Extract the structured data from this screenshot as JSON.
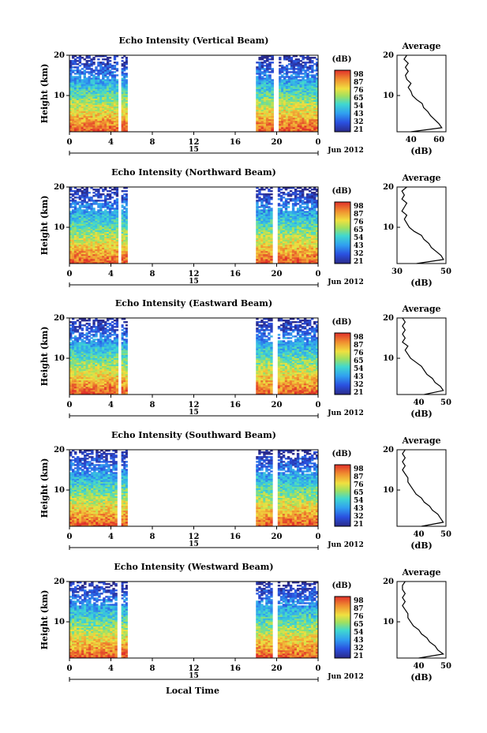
{
  "figure": {
    "xlabel_bottom": "Local Time",
    "date_label": "Jun 2012",
    "ylabel": "Height (km)",
    "colorbar_title": "(dB)",
    "colorbar_ticks": [
      "98",
      "87",
      "76",
      "65",
      "54",
      "43",
      "32",
      "21"
    ],
    "colors": {
      "high": "#e0302a",
      "mid": "#f0e040",
      "low": "#2840d0",
      "frame": "#000000"
    }
  },
  "chart_data": [
    {
      "type": "heatmap",
      "title": "Echo Intensity (Vertical Beam)",
      "ylabel": "Height (km)",
      "x_ticks": [
        "0",
        "4",
        "8",
        "12",
        "16",
        "20",
        "0"
      ],
      "x_day_label": "15",
      "y_ticks": [
        "20",
        "10"
      ],
      "ylim": [
        1,
        20
      ],
      "data_intervals_hours": [
        [
          0,
          4.7
        ],
        [
          5.0,
          5.6
        ],
        [
          18.0,
          19.7
        ],
        [
          20.2,
          24
        ]
      ],
      "profile": {
        "title": "Average",
        "xlabel": "(dB)",
        "x_ticks": [
          "40",
          "60"
        ],
        "xlim": [
          30,
          65
        ],
        "heights_km": [
          1,
          2,
          3,
          4,
          5,
          6,
          7,
          8,
          9,
          10,
          11,
          12,
          13,
          14,
          15,
          16,
          17,
          18,
          19,
          20
        ],
        "values_db": [
          40,
          62,
          60,
          57,
          54,
          52,
          49,
          48,
          44,
          41,
          40,
          38,
          40,
          37,
          36,
          38,
          36,
          38,
          35,
          37
        ]
      }
    },
    {
      "type": "heatmap",
      "title": "Echo Intensity (Northward Beam)",
      "ylabel": "Height (km)",
      "x_ticks": [
        "0",
        "4",
        "8",
        "12",
        "16",
        "20",
        "0"
      ],
      "x_day_label": "15",
      "y_ticks": [
        "20",
        "10"
      ],
      "ylim": [
        1,
        20
      ],
      "data_intervals_hours": [
        [
          0,
          4.7
        ],
        [
          5.0,
          5.6
        ],
        [
          18.0,
          19.6
        ],
        [
          20.1,
          24
        ]
      ],
      "profile": {
        "title": "Average",
        "xlabel": "(dB)",
        "x_ticks": [
          "30",
          "50"
        ],
        "xlim": [
          30,
          50
        ],
        "heights_km": [
          1,
          2,
          3,
          4,
          5,
          6,
          7,
          8,
          9,
          10,
          11,
          12,
          13,
          14,
          15,
          16,
          17,
          18,
          19,
          20
        ],
        "values_db": [
          38,
          49,
          48,
          46,
          44,
          43,
          41,
          40,
          37,
          35,
          34,
          33,
          34,
          32,
          33,
          34,
          32,
          33,
          32,
          34
        ]
      }
    },
    {
      "type": "heatmap",
      "title": "Echo Intensity (Eastward Beam)",
      "ylabel": "Height (km)",
      "x_ticks": [
        "0",
        "4",
        "8",
        "12",
        "16",
        "20",
        "0"
      ],
      "x_day_label": "15",
      "y_ticks": [
        "20",
        "10"
      ],
      "ylim": [
        1,
        20
      ],
      "data_intervals_hours": [
        [
          0,
          4.7
        ],
        [
          5.0,
          5.6
        ],
        [
          18.0,
          19.6
        ],
        [
          20.1,
          24
        ]
      ],
      "profile": {
        "title": "Average",
        "xlabel": "(dB)",
        "x_ticks": [
          "40",
          "50"
        ],
        "xlim": [
          32,
          50
        ],
        "heights_km": [
          1,
          2,
          3,
          4,
          5,
          6,
          7,
          8,
          9,
          10,
          11,
          12,
          13,
          14,
          15,
          16,
          17,
          18,
          19,
          20
        ],
        "values_db": [
          42,
          49,
          48,
          46,
          45,
          43,
          42,
          41,
          39,
          37,
          36,
          35,
          36,
          34,
          35,
          34,
          35,
          34,
          35,
          34
        ]
      }
    },
    {
      "type": "heatmap",
      "title": "Echo Intensity (Southward Beam)",
      "ylabel": "Height (km)",
      "x_ticks": [
        "0",
        "4",
        "8",
        "12",
        "16",
        "20",
        "0"
      ],
      "x_day_label": "15",
      "y_ticks": [
        "20",
        "10"
      ],
      "ylim": [
        1,
        20
      ],
      "data_intervals_hours": [
        [
          0,
          4.6
        ],
        [
          5.0,
          5.6
        ],
        [
          18.0,
          19.6
        ],
        [
          20.1,
          24
        ]
      ],
      "profile": {
        "title": "Average",
        "xlabel": "(dB)",
        "x_ticks": [
          "40",
          "50"
        ],
        "xlim": [
          32,
          50
        ],
        "heights_km": [
          1,
          2,
          3,
          4,
          5,
          6,
          7,
          8,
          9,
          10,
          11,
          12,
          13,
          14,
          15,
          16,
          17,
          18,
          19,
          20
        ],
        "values_db": [
          41,
          49,
          48,
          47,
          45,
          44,
          42,
          41,
          39,
          38,
          37,
          36,
          36,
          35,
          34,
          35,
          34,
          35,
          34,
          35
        ]
      }
    },
    {
      "type": "heatmap",
      "title": "Echo Intensity (Westward Beam)",
      "ylabel": "Height (km)",
      "x_ticks": [
        "0",
        "4",
        "8",
        "12",
        "16",
        "20",
        "0"
      ],
      "x_day_label": "15",
      "y_ticks": [
        "20",
        "10"
      ],
      "ylim": [
        1,
        20
      ],
      "data_intervals_hours": [
        [
          0,
          4.6
        ],
        [
          5.0,
          5.6
        ],
        [
          18.0,
          19.6
        ],
        [
          20.1,
          24
        ]
      ],
      "profile": {
        "title": "Average",
        "xlabel": "(dB)",
        "x_ticks": [
          "40",
          "50"
        ],
        "xlim": [
          32,
          50
        ],
        "heights_km": [
          1,
          2,
          3,
          4,
          5,
          6,
          7,
          8,
          9,
          10,
          11,
          12,
          13,
          14,
          15,
          16,
          17,
          18,
          19,
          20
        ],
        "values_db": [
          40,
          49,
          47,
          46,
          44,
          43,
          41,
          40,
          38,
          37,
          36,
          36,
          35,
          34,
          35,
          34,
          35,
          34,
          34,
          35
        ]
      }
    }
  ]
}
